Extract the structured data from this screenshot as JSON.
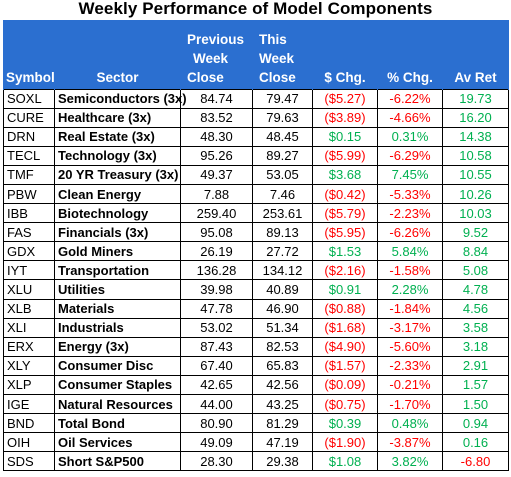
{
  "title": "Weekly Performance of Model Components",
  "headers": {
    "symbol": "Symbol",
    "sector": "Sector",
    "prev_close": [
      "Previous",
      "Week",
      "Close"
    ],
    "this_close": [
      "This",
      "Week",
      "Close"
    ],
    "dollar_chg": "$ Chg.",
    "pct_chg": "% Chg.",
    "av_ret": "Av Ret"
  },
  "colors": {
    "header_bg": "#2b6fd0",
    "header_text": "#ffffff",
    "negative": "#ff0000",
    "positive": "#00b050"
  },
  "rows": [
    {
      "symbol": "SOXL",
      "sector": "Semiconductors (3x)",
      "prev": "84.74",
      "this": "79.47",
      "dchg": "($5.27)",
      "pchg": "-6.22%",
      "avret": "19.73",
      "dneg": true,
      "pneg": true,
      "aneg": false
    },
    {
      "symbol": "CURE",
      "sector": "Healthcare (3x)",
      "prev": "83.52",
      "this": "79.63",
      "dchg": "($3.89)",
      "pchg": "-4.66%",
      "avret": "16.20",
      "dneg": true,
      "pneg": true,
      "aneg": false
    },
    {
      "symbol": "DRN",
      "sector": "Real Estate (3x)",
      "prev": "48.30",
      "this": "48.45",
      "dchg": "$0.15",
      "pchg": "0.31%",
      "avret": "14.38",
      "dneg": false,
      "pneg": false,
      "aneg": false
    },
    {
      "symbol": "TECL",
      "sector": "Technology (3x)",
      "prev": "95.26",
      "this": "89.27",
      "dchg": "($5.99)",
      "pchg": "-6.29%",
      "avret": "10.58",
      "dneg": true,
      "pneg": true,
      "aneg": false
    },
    {
      "symbol": "TMF",
      "sector": "20 YR Treasury (3x)",
      "prev": "49.37",
      "this": "53.05",
      "dchg": "$3.68",
      "pchg": "7.45%",
      "avret": "10.55",
      "dneg": false,
      "pneg": false,
      "aneg": false
    },
    {
      "symbol": "PBW",
      "sector": "Clean Energy",
      "prev": "7.88",
      "this": "7.46",
      "dchg": "($0.42)",
      "pchg": "-5.33%",
      "avret": "10.26",
      "dneg": true,
      "pneg": true,
      "aneg": false
    },
    {
      "symbol": "IBB",
      "sector": "Biotechnology",
      "prev": "259.40",
      "this": "253.61",
      "dchg": "($5.79)",
      "pchg": "-2.23%",
      "avret": "10.03",
      "dneg": true,
      "pneg": true,
      "aneg": false
    },
    {
      "symbol": "FAS",
      "sector": "Financials (3x)",
      "prev": "95.08",
      "this": "89.13",
      "dchg": "($5.95)",
      "pchg": "-6.26%",
      "avret": "9.52",
      "dneg": true,
      "pneg": true,
      "aneg": false
    },
    {
      "symbol": "GDX",
      "sector": "Gold Miners",
      "prev": "26.19",
      "this": "27.72",
      "dchg": "$1.53",
      "pchg": "5.84%",
      "avret": "8.84",
      "dneg": false,
      "pneg": false,
      "aneg": false
    },
    {
      "symbol": "IYT",
      "sector": "Transportation",
      "prev": "136.28",
      "this": "134.12",
      "dchg": "($2.16)",
      "pchg": "-1.58%",
      "avret": "5.08",
      "dneg": true,
      "pneg": true,
      "aneg": false
    },
    {
      "symbol": "XLU",
      "sector": "Utilities",
      "prev": "39.98",
      "this": "40.89",
      "dchg": "$0.91",
      "pchg": "2.28%",
      "avret": "4.78",
      "dneg": false,
      "pneg": false,
      "aneg": false
    },
    {
      "symbol": "XLB",
      "sector": "Materials",
      "prev": "47.78",
      "this": "46.90",
      "dchg": "($0.88)",
      "pchg": "-1.84%",
      "avret": "4.56",
      "dneg": true,
      "pneg": true,
      "aneg": false
    },
    {
      "symbol": "XLI",
      "sector": "Industrials",
      "prev": "53.02",
      "this": "51.34",
      "dchg": "($1.68)",
      "pchg": "-3.17%",
      "avret": "3.58",
      "dneg": true,
      "pneg": true,
      "aneg": false
    },
    {
      "symbol": "ERX",
      "sector": "Energy (3x)",
      "prev": "87.43",
      "this": "82.53",
      "dchg": "($4.90)",
      "pchg": "-5.60%",
      "avret": "3.18",
      "dneg": true,
      "pneg": true,
      "aneg": false
    },
    {
      "symbol": "XLY",
      "sector": "Consumer Disc",
      "prev": "67.40",
      "this": "65.83",
      "dchg": "($1.57)",
      "pchg": "-2.33%",
      "avret": "2.91",
      "dneg": true,
      "pneg": true,
      "aneg": false
    },
    {
      "symbol": "XLP",
      "sector": "Consumer Staples",
      "prev": "42.65",
      "this": "42.56",
      "dchg": "($0.09)",
      "pchg": "-0.21%",
      "avret": "1.57",
      "dneg": true,
      "pneg": true,
      "aneg": false
    },
    {
      "symbol": "IGE",
      "sector": "Natural Resources",
      "prev": "44.00",
      "this": "43.25",
      "dchg": "($0.75)",
      "pchg": "-1.70%",
      "avret": "1.50",
      "dneg": true,
      "pneg": true,
      "aneg": false
    },
    {
      "symbol": "BND",
      "sector": "Total Bond",
      "prev": "80.90",
      "this": "81.29",
      "dchg": "$0.39",
      "pchg": "0.48%",
      "avret": "0.94",
      "dneg": false,
      "pneg": false,
      "aneg": false
    },
    {
      "symbol": "OIH",
      "sector": "Oil Services",
      "prev": "49.09",
      "this": "47.19",
      "dchg": "($1.90)",
      "pchg": "-3.87%",
      "avret": "0.16",
      "dneg": true,
      "pneg": true,
      "aneg": false
    },
    {
      "symbol": "SDS",
      "sector": "Short S&P500",
      "prev": "28.30",
      "this": "29.38",
      "dchg": "$1.08",
      "pchg": "3.82%",
      "avret": "-6.80",
      "dneg": false,
      "pneg": false,
      "aneg": true
    }
  ]
}
